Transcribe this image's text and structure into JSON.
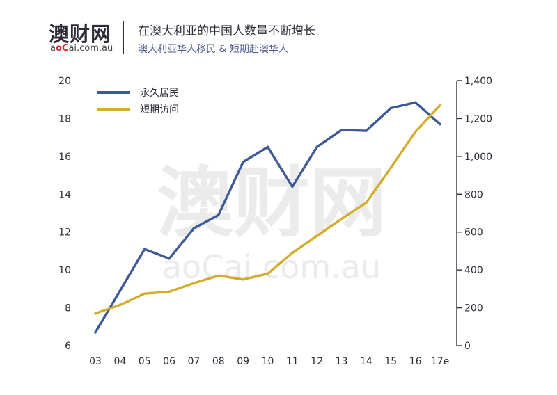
{
  "header": {
    "logo_cn": "澳财网",
    "logo_prefix": "a",
    "logo_o": "o",
    "logo_c": "C",
    "logo_suffix": "ai.com.au",
    "title": "在澳大利亚的中国人数量不断增长",
    "subtitle": "澳大利亚华人移民 & 短期赴澳华人"
  },
  "watermark": {
    "cn": "澳财网",
    "en": "aoCai.com.au"
  },
  "colors": {
    "permanent": "#3d5a96",
    "short_term": "#d4ac2b",
    "text": "#2d2d3a"
  },
  "chart_data": {
    "type": "line",
    "categories": [
      "03",
      "04",
      "05",
      "06",
      "07",
      "08",
      "09",
      "10",
      "11",
      "12",
      "13",
      "14",
      "15",
      "16",
      "17e"
    ],
    "left_axis": {
      "ylim": [
        6,
        20
      ],
      "ticks": [
        6,
        8,
        10,
        12,
        14,
        16,
        18,
        20
      ],
      "tick_labels": [
        "6",
        "8",
        "10",
        "12",
        "14",
        "16",
        "18",
        "20"
      ]
    },
    "right_axis": {
      "ylim": [
        0,
        1400
      ],
      "ticks": [
        0,
        200,
        400,
        600,
        800,
        1000,
        1200,
        1400
      ],
      "tick_labels": [
        "0",
        "200",
        "400",
        "600",
        "800",
        "1,000",
        "1,200",
        "1,400"
      ]
    },
    "series": [
      {
        "name": "永久居民",
        "axis": "left",
        "color": "#3d5a96",
        "values": [
          6.7,
          8.9,
          11.1,
          10.6,
          12.2,
          12.9,
          15.7,
          16.5,
          14.4,
          16.5,
          17.4,
          17.35,
          18.55,
          18.85,
          17.7
        ]
      },
      {
        "name": "短期访问",
        "axis": "right",
        "color": "#d4ac2b",
        "values": [
          170,
          215,
          275,
          285,
          330,
          370,
          350,
          380,
          490,
          580,
          670,
          755,
          940,
          1130,
          1270
        ]
      }
    ],
    "legend_position": "top-left"
  }
}
